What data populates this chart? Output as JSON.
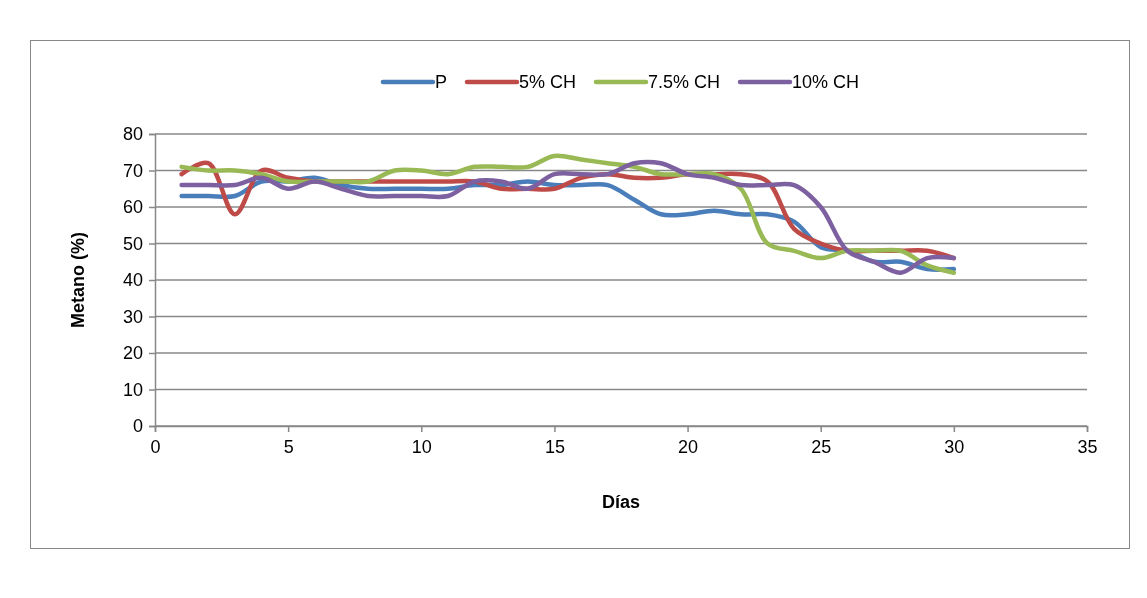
{
  "chart_data": {
    "type": "line",
    "xlabel": "Días",
    "ylabel": "Metano (%)",
    "x": [
      1,
      2,
      3,
      4,
      5,
      6,
      7,
      8,
      9,
      10,
      11,
      12,
      13,
      14,
      15,
      16,
      17,
      18,
      19,
      20,
      21,
      22,
      23,
      24,
      25,
      26,
      27,
      28,
      29,
      30
    ],
    "series": [
      {
        "name": "P",
        "color": "#4a7ebb",
        "values": [
          63,
          63,
          63,
          67,
          67,
          68,
          66,
          65,
          65,
          65,
          65,
          66,
          66,
          67,
          66,
          66,
          66,
          62,
          58,
          58,
          59,
          58,
          58,
          56,
          49,
          48,
          45,
          45,
          43,
          43
        ]
      },
      {
        "name": "5% CH",
        "color": "#be4b48",
        "values": [
          69,
          72,
          58,
          70,
          68,
          67,
          67,
          67,
          67,
          67,
          67,
          67,
          65,
          65,
          65,
          68,
          69,
          68,
          68,
          69,
          69,
          69,
          67,
          54,
          50,
          48,
          48,
          48,
          48,
          46
        ]
      },
      {
        "name": "7.5% CH",
        "color": "#98b954",
        "values": [
          71,
          70,
          70,
          69,
          67,
          67,
          67,
          67,
          70,
          70,
          69,
          71,
          71,
          71,
          74,
          73,
          72,
          71,
          69,
          69,
          69,
          65,
          50,
          48,
          46,
          48,
          48,
          48,
          44,
          42
        ]
      },
      {
        "name": "10% CH",
        "color": "#7d60a0",
        "values": [
          66,
          66,
          66,
          68,
          65,
          67,
          65,
          63,
          63,
          63,
          63,
          67,
          67,
          65,
          69,
          69,
          69,
          72,
          72,
          69,
          68,
          66,
          66,
          66,
          60,
          48,
          45,
          42,
          46,
          46
        ]
      }
    ],
    "xlim": [
      0,
      35
    ],
    "xticks": [
      0,
      5,
      10,
      15,
      20,
      25,
      30,
      35
    ],
    "ylim": [
      0,
      80
    ],
    "yticks": [
      0,
      10,
      20,
      30,
      40,
      50,
      60,
      70,
      80
    ],
    "grid": "y",
    "legend": "top",
    "marker": "none",
    "line_style": "solid"
  }
}
